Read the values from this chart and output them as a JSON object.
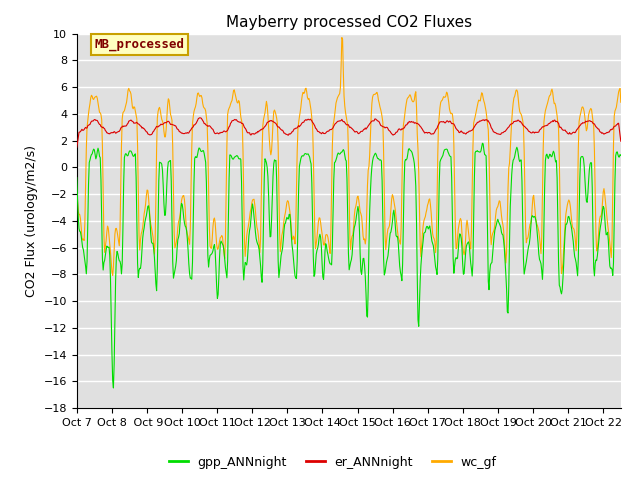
{
  "title": "Mayberry processed CO2 Fluxes",
  "ylabel": "CO2 Flux (urology/m2/s)",
  "ylim": [
    -18,
    10
  ],
  "yticks": [
    -18,
    -16,
    -14,
    -12,
    -10,
    -8,
    -6,
    -4,
    -2,
    0,
    2,
    4,
    6,
    8,
    10
  ],
  "xlim": [
    0,
    15.5
  ],
  "xtick_labels": [
    "Oct 7",
    "Oct 8",
    " Oct 9",
    "Oct 10",
    "Oct 11",
    "Oct 12",
    "Oct 13",
    "Oct 14",
    "Oct 15",
    "Oct 16",
    "Oct 17",
    "Oct 18",
    "Oct 19",
    "Oct 20",
    "Oct 21",
    "Oct 22"
  ],
  "xtick_positions": [
    0,
    1,
    2,
    3,
    4,
    5,
    6,
    7,
    8,
    9,
    10,
    11,
    12,
    13,
    14,
    15
  ],
  "legend_label": "MB_processed",
  "legend_fc": "#ffffc0",
  "legend_ec": "#c8a000",
  "legend_text_color": "#800000",
  "gpp_color": "#00dd00",
  "er_color": "#dd0000",
  "wc_color": "#ffaa00",
  "line_width": 0.8,
  "background_color": "#e0e0e0",
  "title_fontsize": 11,
  "axis_fontsize": 9,
  "tick_fontsize": 8
}
